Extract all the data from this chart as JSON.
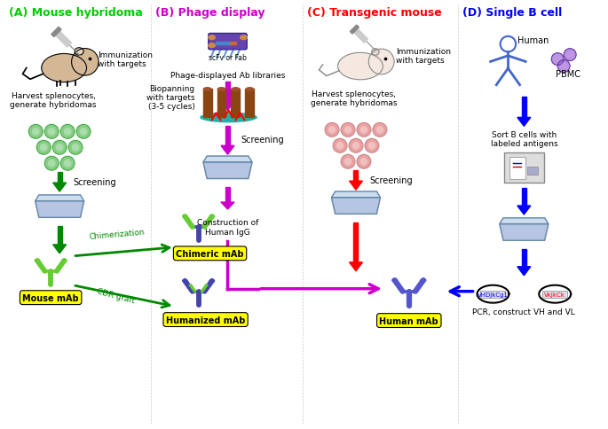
{
  "title_A": "(A) Mouse hybridoma",
  "title_B": "(B) Phage display",
  "title_C": "(C) Transgenic mouse",
  "title_D": "(D) Single B cell",
  "color_A": "#00cc00",
  "color_B": "#cc00cc",
  "color_C": "#ff0000",
  "color_D": "#0000ff",
  "bg_color": "#ffffff",
  "fig_width": 6.85,
  "fig_height": 4.85,
  "dpi": 100,
  "text_immunization": "Immunization\nwith targets",
  "text_harvest_A": "Harvest splenocytes,\ngenerate hybridomas",
  "text_harvest_C": "Harvest splenocytes,\ngenerate hybridomas",
  "text_screening": "Screening",
  "text_phage_lib": "Phage-displayed Ab libraries",
  "text_biopanning": "Biopanning\nwith targets\n(3-5 cycles)",
  "text_scfv": "scFv or Fab",
  "text_chimeric": "Chimeric mAb",
  "text_humanized": "Humanized mAb",
  "text_mouse_mab": "Mouse mAb",
  "text_human_mab": "Human mAb",
  "text_chimerization": "Chimerization",
  "text_cdr_graft": "CDR graft",
  "text_construction": "Construction of\nHuman IgG",
  "text_human": "Human",
  "text_pbmc": "PBMC",
  "text_sort": "Sort B cells with\nlabeled antigens",
  "text_pcr": "PCR, construct V",
  "text_pcr2": "H",
  "text_and_vl": " and V",
  "text_vl": "L",
  "label_yellow_bg": "#ffff00",
  "green_arrow": "#008800",
  "magenta_arrow": "#cc00cc",
  "red_arrow": "#ff0000",
  "blue_arrow": "#0000ff",
  "dark_green": "#006600"
}
